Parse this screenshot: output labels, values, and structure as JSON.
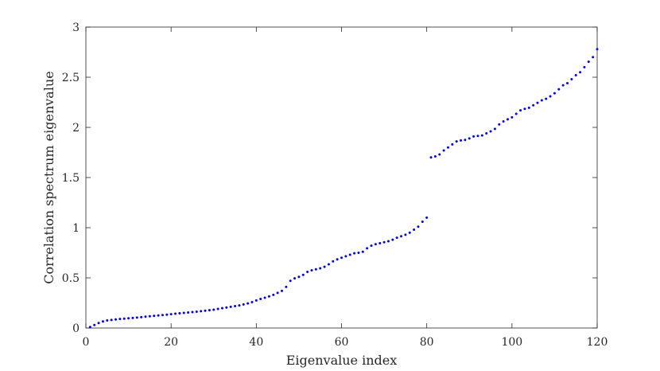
{
  "chart_data": {
    "type": "scatter",
    "title": "",
    "xlabel": "Eigenvalue index",
    "ylabel": "Correlation spectrum eigenvalue",
    "xlim": [
      0,
      120
    ],
    "ylim": [
      0,
      3
    ],
    "xticks": [
      0,
      20,
      40,
      60,
      80,
      100,
      120
    ],
    "yticks": [
      0,
      0.5,
      1,
      1.5,
      2,
      2.5,
      3
    ],
    "xtick_labels": [
      "0",
      "20",
      "40",
      "60",
      "80",
      "100",
      "120"
    ],
    "ytick_labels": [
      "0",
      "0.5",
      "1",
      "1.5",
      "2",
      "2.5",
      "3"
    ],
    "grid": false,
    "marker_color": "#0000ff",
    "series": [
      {
        "x": [
          1,
          2,
          3,
          4,
          5,
          6,
          7,
          8,
          9,
          10,
          11,
          12,
          13,
          14,
          15,
          16,
          17,
          18,
          19,
          20,
          21,
          22,
          23,
          24,
          25,
          26,
          27,
          28,
          29,
          30,
          31,
          32,
          33,
          34,
          35,
          36,
          37,
          38,
          39,
          40,
          41,
          42,
          43,
          44,
          45,
          46,
          47,
          48,
          49,
          50,
          51,
          52,
          53,
          54,
          55,
          56,
          57,
          58,
          59,
          60,
          61,
          62,
          63,
          64,
          65,
          66,
          67,
          68,
          69,
          70,
          71,
          72,
          73,
          74,
          75,
          76,
          77,
          78,
          79,
          80,
          81,
          82,
          83,
          84,
          85,
          86,
          87,
          88,
          89,
          90,
          91,
          92,
          93,
          94,
          95,
          96,
          97,
          98,
          99,
          100,
          101,
          102,
          103,
          104,
          105,
          106,
          107,
          108,
          109,
          110,
          111,
          112,
          113,
          114,
          115,
          116,
          117,
          118,
          119,
          120
        ],
        "values": [
          0.01,
          0.03,
          0.05,
          0.065,
          0.075,
          0.08,
          0.085,
          0.09,
          0.093,
          0.097,
          0.1,
          0.104,
          0.108,
          0.113,
          0.117,
          0.121,
          0.125,
          0.129,
          0.133,
          0.138,
          0.143,
          0.147,
          0.151,
          0.155,
          0.159,
          0.163,
          0.168,
          0.173,
          0.178,
          0.183,
          0.19,
          0.197,
          0.204,
          0.211,
          0.218,
          0.225,
          0.235,
          0.245,
          0.258,
          0.275,
          0.29,
          0.302,
          0.315,
          0.33,
          0.35,
          0.37,
          0.41,
          0.47,
          0.495,
          0.51,
          0.53,
          0.56,
          0.575,
          0.585,
          0.595,
          0.61,
          0.635,
          0.665,
          0.685,
          0.7,
          0.715,
          0.73,
          0.745,
          0.75,
          0.76,
          0.795,
          0.82,
          0.835,
          0.845,
          0.855,
          0.865,
          0.88,
          0.9,
          0.915,
          0.93,
          0.95,
          0.98,
          1.01,
          1.06,
          1.1,
          1.7,
          1.71,
          1.73,
          1.77,
          1.8,
          1.83,
          1.86,
          1.87,
          1.875,
          1.89,
          1.91,
          1.915,
          1.92,
          1.94,
          1.96,
          1.985,
          2.03,
          2.06,
          2.08,
          2.1,
          2.135,
          2.17,
          2.185,
          2.195,
          2.22,
          2.245,
          2.27,
          2.285,
          2.31,
          2.34,
          2.38,
          2.42,
          2.44,
          2.48,
          2.52,
          2.55,
          2.6,
          2.655,
          2.7,
          2.78
        ]
      }
    ]
  }
}
